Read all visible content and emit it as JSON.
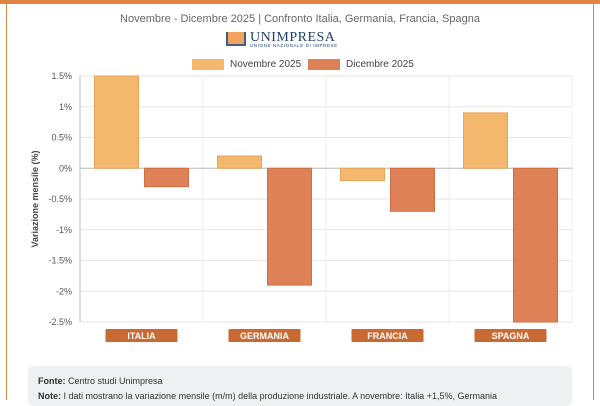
{
  "subtitle": "Novembre - Dicembre 2025 | Confronto Italia, Germania, Francia, Spagna",
  "logo": {
    "name": "UNIMPRESA",
    "tagline": "UNIONE NAZIONALE DI IMPRESE"
  },
  "colors": {
    "nov": "#f4b76e",
    "dec": "#df8156",
    "label_bg": "#c96a35",
    "accent": "#e0843f"
  },
  "chart_data": {
    "type": "bar",
    "categories": [
      "ITALIA",
      "GERMANIA",
      "FRANCIA",
      "SPAGNA"
    ],
    "series": [
      {
        "name": "Novembre 2025",
        "values": [
          1.5,
          0.2,
          -0.2,
          0.9
        ]
      },
      {
        "name": "Dicembre 2025",
        "values": [
          -0.3,
          -1.9,
          -0.7,
          -2.5
        ]
      }
    ],
    "ylabel": "Variazione mensile (%)",
    "ylim": [
      -2.5,
      1.5
    ],
    "yticks": [
      1.5,
      1,
      0.5,
      0,
      -0.5,
      -1,
      -1.5,
      -2,
      -2.5
    ],
    "ytick_labels": [
      "1.5%",
      "1%",
      "0.5%",
      "0%",
      "-0.5%",
      "-1%",
      "-1.5%",
      "-2%",
      "-2.5%"
    ],
    "grid": true,
    "legend_position": "top"
  },
  "notes": {
    "source_label": "Fonte:",
    "source_text": "Centro studi Unimpresa",
    "note_label": "Note:",
    "note_text": "I dati mostrano la variazione mensile (m/m) della produzione industriale. A novembre: Italia +1,5%, Germania"
  }
}
